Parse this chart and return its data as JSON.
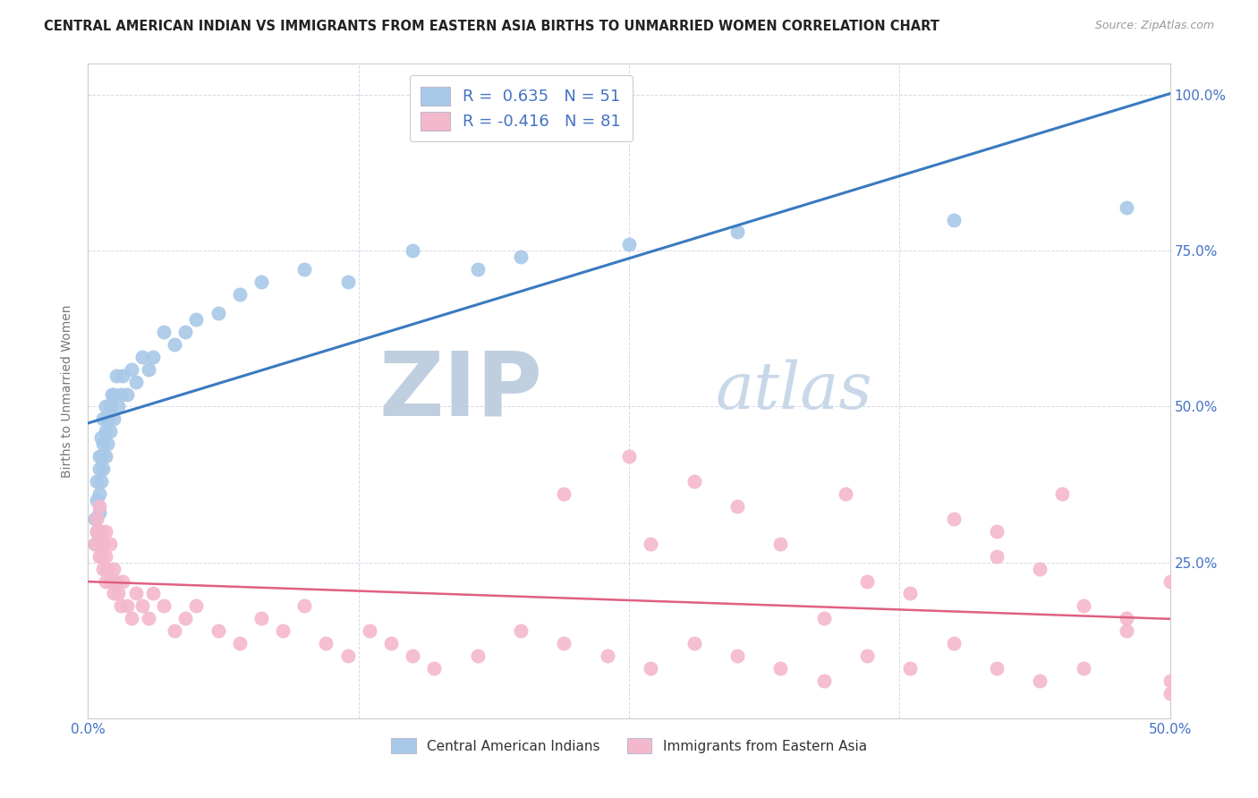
{
  "title": "CENTRAL AMERICAN INDIAN VS IMMIGRANTS FROM EASTERN ASIA BIRTHS TO UNMARRIED WOMEN CORRELATION CHART",
  "source": "Source: ZipAtlas.com",
  "ylabel": "Births to Unmarried Women",
  "blue_R": 0.635,
  "blue_N": 51,
  "pink_R": -0.416,
  "pink_N": 81,
  "blue_color": "#a8c8e8",
  "pink_color": "#f4b8cc",
  "blue_line_color": "#3a7abf",
  "pink_line_color": "#e06080",
  "legend_blue_label": "R =  0.635   N = 51",
  "legend_pink_label": "R = -0.416   N = 81",
  "legend1": "Central American Indians",
  "legend2": "Immigrants from Eastern Asia",
  "watermark_zip": "ZIP",
  "watermark_atlas": "atlas",
  "blue_x": [
    0.003,
    0.003,
    0.004,
    0.004,
    0.004,
    0.005,
    0.005,
    0.005,
    0.005,
    0.006,
    0.006,
    0.006,
    0.007,
    0.007,
    0.007,
    0.008,
    0.008,
    0.008,
    0.009,
    0.009,
    0.01,
    0.01,
    0.011,
    0.012,
    0.012,
    0.013,
    0.014,
    0.015,
    0.016,
    0.018,
    0.02,
    0.022,
    0.025,
    0.028,
    0.03,
    0.035,
    0.04,
    0.045,
    0.05,
    0.06,
    0.07,
    0.08,
    0.1,
    0.12,
    0.15,
    0.18,
    0.2,
    0.25,
    0.3,
    0.4,
    0.48
  ],
  "blue_y": [
    0.28,
    0.32,
    0.35,
    0.3,
    0.38,
    0.33,
    0.36,
    0.4,
    0.42,
    0.38,
    0.42,
    0.45,
    0.4,
    0.44,
    0.48,
    0.42,
    0.46,
    0.5,
    0.44,
    0.48,
    0.46,
    0.5,
    0.52,
    0.48,
    0.52,
    0.55,
    0.5,
    0.52,
    0.55,
    0.52,
    0.56,
    0.54,
    0.58,
    0.56,
    0.58,
    0.62,
    0.6,
    0.62,
    0.64,
    0.65,
    0.68,
    0.7,
    0.72,
    0.7,
    0.75,
    0.72,
    0.74,
    0.76,
    0.78,
    0.8,
    0.82
  ],
  "pink_x": [
    0.003,
    0.004,
    0.004,
    0.005,
    0.005,
    0.005,
    0.006,
    0.006,
    0.006,
    0.007,
    0.007,
    0.008,
    0.008,
    0.008,
    0.009,
    0.01,
    0.01,
    0.011,
    0.012,
    0.012,
    0.013,
    0.014,
    0.015,
    0.016,
    0.018,
    0.02,
    0.022,
    0.025,
    0.028,
    0.03,
    0.035,
    0.04,
    0.045,
    0.05,
    0.06,
    0.07,
    0.08,
    0.09,
    0.1,
    0.11,
    0.12,
    0.13,
    0.14,
    0.15,
    0.16,
    0.18,
    0.2,
    0.22,
    0.24,
    0.26,
    0.28,
    0.3,
    0.32,
    0.34,
    0.36,
    0.38,
    0.4,
    0.42,
    0.44,
    0.46,
    0.48,
    0.5,
    0.3,
    0.35,
    0.4,
    0.45,
    0.5,
    0.25,
    0.28,
    0.32,
    0.36,
    0.42,
    0.46,
    0.38,
    0.44,
    0.48,
    0.22,
    0.26,
    0.34,
    0.42,
    0.5
  ],
  "pink_y": [
    0.28,
    0.3,
    0.32,
    0.26,
    0.3,
    0.34,
    0.26,
    0.28,
    0.3,
    0.24,
    0.28,
    0.22,
    0.26,
    0.3,
    0.24,
    0.22,
    0.28,
    0.22,
    0.2,
    0.24,
    0.22,
    0.2,
    0.18,
    0.22,
    0.18,
    0.16,
    0.2,
    0.18,
    0.16,
    0.2,
    0.18,
    0.14,
    0.16,
    0.18,
    0.14,
    0.12,
    0.16,
    0.14,
    0.18,
    0.12,
    0.1,
    0.14,
    0.12,
    0.1,
    0.08,
    0.1,
    0.14,
    0.12,
    0.1,
    0.08,
    0.12,
    0.1,
    0.08,
    0.06,
    0.1,
    0.08,
    0.12,
    0.08,
    0.06,
    0.08,
    0.14,
    0.04,
    0.34,
    0.36,
    0.32,
    0.36,
    0.22,
    0.42,
    0.38,
    0.28,
    0.22,
    0.3,
    0.18,
    0.2,
    0.24,
    0.16,
    0.36,
    0.28,
    0.16,
    0.26,
    0.06
  ],
  "xlim": [
    0.0,
    0.5
  ],
  "ylim": [
    0.0,
    1.05
  ],
  "background_color": "#ffffff",
  "title_fontsize": 10.5,
  "source_fontsize": 9,
  "tick_label_color": "#4472c4",
  "grid_color": "#d8d8e8",
  "watermark_zip_color": "#c0cfe0",
  "watermark_atlas_color": "#c8d8e8"
}
